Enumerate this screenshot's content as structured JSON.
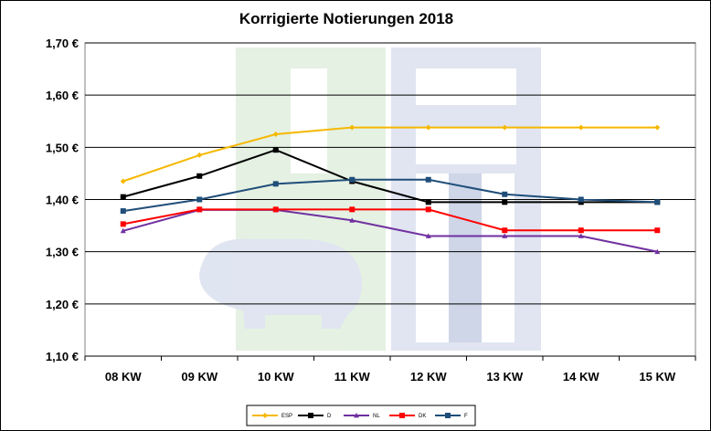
{
  "chart_data": {
    "type": "line",
    "title": "Korrigierte Notierungen 2018",
    "categories": [
      "08 KW",
      "09 KW",
      "10 KW",
      "11 KW",
      "12 KW",
      "13 KW",
      "14 KW",
      "15 KW"
    ],
    "y_ticks": [
      "1,10 €",
      "1,20 €",
      "1,30 €",
      "1,40 €",
      "1,50 €",
      "1,60 €",
      "1,70 €"
    ],
    "ylim": [
      1.1,
      1.7
    ],
    "grid": true,
    "legend_position": "bottom",
    "series": [
      {
        "name": "ESP",
        "color": "#F5B800",
        "marker": "diamond",
        "values": [
          1.435,
          1.485,
          1.525,
          1.538,
          1.538,
          1.538,
          1.538,
          1.538
        ]
      },
      {
        "name": "D",
        "color": "#000000",
        "marker": "square",
        "values": [
          1.405,
          1.445,
          1.495,
          1.435,
          1.395,
          1.395,
          1.395,
          1.395
        ]
      },
      {
        "name": "NL",
        "color": "#7030A0",
        "marker": "triangle",
        "values": [
          1.34,
          1.38,
          1.38,
          1.36,
          1.33,
          1.33,
          1.33,
          1.3
        ]
      },
      {
        "name": "DK",
        "color": "#FF0000",
        "marker": "square",
        "values": [
          1.353,
          1.381,
          1.381,
          1.381,
          1.381,
          1.341,
          1.341,
          1.341
        ]
      },
      {
        "name": "F",
        "color": "#1F4E79",
        "marker": "square",
        "values": [
          1.378,
          1.4,
          1.43,
          1.438,
          1.438,
          1.41,
          1.4,
          1.395
        ]
      }
    ]
  }
}
